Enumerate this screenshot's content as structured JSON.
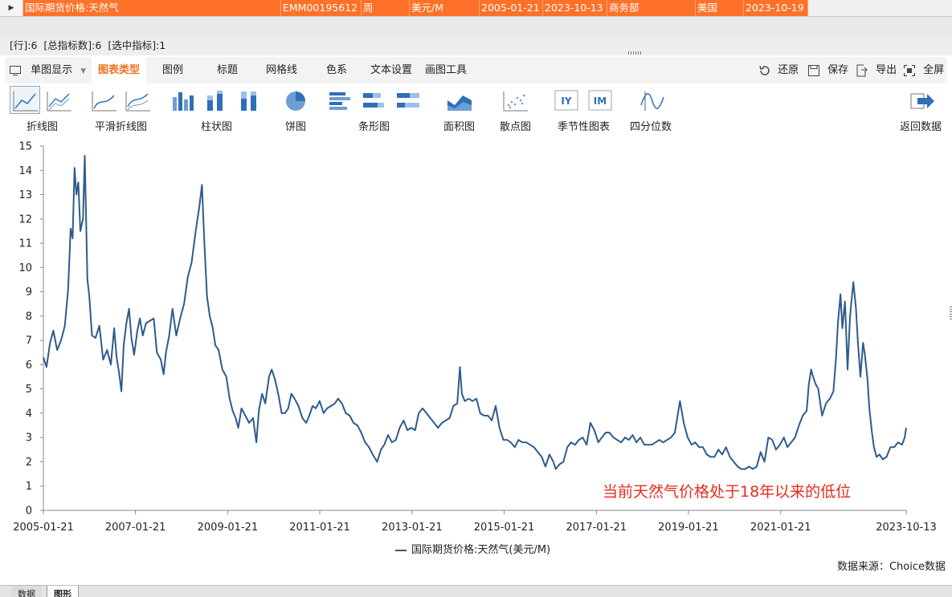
{
  "grid_row": {
    "indicator": "▶",
    "cells": [
      {
        "key": "name",
        "text": "国际期货价格:天然气"
      },
      {
        "key": "code",
        "text": "EMM00195612"
      },
      {
        "key": "freq",
        "text": "周"
      },
      {
        "key": "unit",
        "text": "美元/M"
      },
      {
        "key": "start",
        "text": "2005-01-21"
      },
      {
        "key": "end",
        "text": "2023-10-13"
      },
      {
        "key": "source",
        "text": "商务部"
      },
      {
        "key": "region",
        "text": "美国"
      },
      {
        "key": "updated",
        "text": "2023-10-19"
      }
    ]
  },
  "status": {
    "rows": "[行]:6",
    "total": "[总指标数]:6",
    "selected": "[选中指标]:1"
  },
  "tabs": {
    "single_view": "单图显示",
    "items": [
      "图表类型",
      "图例",
      "标题",
      "网格线",
      "色系",
      "文本设置",
      "画图工具"
    ],
    "actions": {
      "restore": "还原",
      "save": "保存",
      "export": "导出",
      "fullscreen": "全屏"
    }
  },
  "ribbon": {
    "labels": {
      "line": "折线图",
      "smooth": "平滑折线图",
      "bar": "柱状图",
      "pie": "饼图",
      "hbar": "条形图",
      "area": "面积图",
      "scatter": "散点图",
      "seasonal": "季节性图表",
      "quantile": "四分位数",
      "back": "返回数据"
    },
    "seasonal_icons": [
      "IY",
      "IM"
    ]
  },
  "chart_data": {
    "type": "line",
    "title": "",
    "xlabel": "",
    "ylabel": "",
    "ylim": [
      0,
      15
    ],
    "yticks": [
      "0",
      "1",
      "2",
      "3",
      "4",
      "5",
      "6",
      "7",
      "8",
      "9",
      "10",
      "11",
      "12",
      "13",
      "14",
      "15"
    ],
    "xtick_labels": [
      "2005-01-21",
      "2007-01-21",
      "2009-01-21",
      "2011-01-21",
      "2013-01-21",
      "2015-01-21",
      "2017-01-21",
      "2019-01-21",
      "2021-01-21",
      "2023-10-13"
    ],
    "xtick_dates": [
      "2005-01-21",
      "2007-01-21",
      "2009-01-21",
      "2011-01-21",
      "2013-01-21",
      "2015-01-21",
      "2017-01-21",
      "2019-01-21",
      "2021-01-21",
      "2023-10-13"
    ],
    "series": [
      {
        "name": "国际期货价格:天然气(美元/M)",
        "color": "#2e5b8c",
        "points": [
          [
            "2005-01-21",
            6.3
          ],
          [
            "2005-02-15",
            5.9
          ],
          [
            "2005-03-15",
            6.9
          ],
          [
            "2005-04-10",
            7.4
          ],
          [
            "2005-05-10",
            6.6
          ],
          [
            "2005-06-10",
            7.0
          ],
          [
            "2005-07-10",
            7.6
          ],
          [
            "2005-08-05",
            9.1
          ],
          [
            "2005-08-25",
            11.6
          ],
          [
            "2005-09-10",
            11.2
          ],
          [
            "2005-09-25",
            14.1
          ],
          [
            "2005-10-10",
            13.0
          ],
          [
            "2005-10-25",
            13.5
          ],
          [
            "2005-11-10",
            11.5
          ],
          [
            "2005-12-01",
            12.0
          ],
          [
            "2005-12-15",
            14.6
          ],
          [
            "2006-01-05",
            9.5
          ],
          [
            "2006-01-20",
            8.8
          ],
          [
            "2006-02-10",
            7.2
          ],
          [
            "2006-03-10",
            7.1
          ],
          [
            "2006-04-10",
            7.6
          ],
          [
            "2006-05-10",
            6.2
          ],
          [
            "2006-06-10",
            6.6
          ],
          [
            "2006-07-10",
            6.0
          ],
          [
            "2006-08-05",
            7.5
          ],
          [
            "2006-08-25",
            6.3
          ],
          [
            "2006-09-15",
            5.6
          ],
          [
            "2006-10-01",
            4.9
          ],
          [
            "2006-10-20",
            6.8
          ],
          [
            "2006-11-10",
            7.7
          ],
          [
            "2006-12-01",
            8.3
          ],
          [
            "2006-12-20",
            7.1
          ],
          [
            "2007-01-10",
            6.4
          ],
          [
            "2007-02-05",
            7.4
          ],
          [
            "2007-02-25",
            7.9
          ],
          [
            "2007-03-20",
            7.2
          ],
          [
            "2007-04-15",
            7.7
          ],
          [
            "2007-05-15",
            7.8
          ],
          [
            "2007-06-15",
            7.9
          ],
          [
            "2007-07-10",
            6.5
          ],
          [
            "2007-08-10",
            6.2
          ],
          [
            "2007-09-01",
            5.6
          ],
          [
            "2007-09-20",
            6.5
          ],
          [
            "2007-10-15",
            7.2
          ],
          [
            "2007-11-10",
            8.3
          ],
          [
            "2007-12-10",
            7.2
          ],
          [
            "2008-01-10",
            7.9
          ],
          [
            "2008-02-10",
            8.5
          ],
          [
            "2008-03-10",
            9.6
          ],
          [
            "2008-04-10",
            10.2
          ],
          [
            "2008-05-10",
            11.4
          ],
          [
            "2008-06-10",
            12.5
          ],
          [
            "2008-07-01",
            13.4
          ],
          [
            "2008-07-20",
            11.0
          ],
          [
            "2008-08-10",
            8.8
          ],
          [
            "2008-09-01",
            8.0
          ],
          [
            "2008-09-25",
            7.5
          ],
          [
            "2008-10-15",
            6.8
          ],
          [
            "2008-11-10",
            6.6
          ],
          [
            "2008-12-10",
            5.8
          ],
          [
            "2009-01-10",
            5.5
          ],
          [
            "2009-02-05",
            4.6
          ],
          [
            "2009-03-01",
            4.1
          ],
          [
            "2009-03-25",
            3.8
          ],
          [
            "2009-04-15",
            3.4
          ],
          [
            "2009-05-10",
            4.2
          ],
          [
            "2009-06-10",
            3.9
          ],
          [
            "2009-07-10",
            3.6
          ],
          [
            "2009-08-10",
            3.8
          ],
          [
            "2009-09-05",
            2.8
          ],
          [
            "2009-09-25",
            4.1
          ],
          [
            "2009-10-20",
            4.8
          ],
          [
            "2009-11-15",
            4.4
          ],
          [
            "2009-12-15",
            5.5
          ],
          [
            "2010-01-05",
            5.8
          ],
          [
            "2010-01-30",
            5.4
          ],
          [
            "2010-02-25",
            4.8
          ],
          [
            "2010-03-25",
            4.0
          ],
          [
            "2010-04-20",
            4.0
          ],
          [
            "2010-05-15",
            4.2
          ],
          [
            "2010-06-10",
            4.8
          ],
          [
            "2010-07-05",
            4.6
          ],
          [
            "2010-08-05",
            4.3
          ],
          [
            "2010-09-05",
            3.8
          ],
          [
            "2010-10-05",
            3.6
          ],
          [
            "2010-10-30",
            3.9
          ],
          [
            "2010-11-25",
            4.3
          ],
          [
            "2010-12-20",
            4.2
          ],
          [
            "2011-01-20",
            4.5
          ],
          [
            "2011-02-20",
            4.0
          ],
          [
            "2011-03-20",
            4.2
          ],
          [
            "2011-04-20",
            4.3
          ],
          [
            "2011-05-20",
            4.4
          ],
          [
            "2011-06-15",
            4.6
          ],
          [
            "2011-07-15",
            4.4
          ],
          [
            "2011-08-15",
            4.0
          ],
          [
            "2011-09-15",
            3.9
          ],
          [
            "2011-10-15",
            3.6
          ],
          [
            "2011-11-15",
            3.5
          ],
          [
            "2011-12-15",
            3.2
          ],
          [
            "2012-01-15",
            2.8
          ],
          [
            "2012-02-15",
            2.6
          ],
          [
            "2012-03-15",
            2.3
          ],
          [
            "2012-04-20",
            2.0
          ],
          [
            "2012-05-20",
            2.5
          ],
          [
            "2012-06-15",
            2.7
          ],
          [
            "2012-07-15",
            3.1
          ],
          [
            "2012-08-15",
            2.8
          ],
          [
            "2012-09-15",
            2.9
          ],
          [
            "2012-10-15",
            3.4
          ],
          [
            "2012-11-15",
            3.7
          ],
          [
            "2012-12-15",
            3.3
          ],
          [
            "2013-01-15",
            3.4
          ],
          [
            "2013-02-15",
            3.3
          ],
          [
            "2013-03-15",
            4.0
          ],
          [
            "2013-04-15",
            4.2
          ],
          [
            "2013-05-15",
            4.0
          ],
          [
            "2013-06-15",
            3.8
          ],
          [
            "2013-07-15",
            3.6
          ],
          [
            "2013-08-15",
            3.4
          ],
          [
            "2013-09-15",
            3.6
          ],
          [
            "2013-10-15",
            3.7
          ],
          [
            "2013-11-15",
            3.8
          ],
          [
            "2013-12-15",
            4.3
          ],
          [
            "2014-01-15",
            4.4
          ],
          [
            "2014-02-05",
            5.9
          ],
          [
            "2014-02-20",
            4.8
          ],
          [
            "2014-03-15",
            4.5
          ],
          [
            "2014-04-15",
            4.6
          ],
          [
            "2014-05-15",
            4.5
          ],
          [
            "2014-06-15",
            4.6
          ],
          [
            "2014-07-15",
            4.0
          ],
          [
            "2014-08-15",
            3.9
          ],
          [
            "2014-09-15",
            3.9
          ],
          [
            "2014-10-15",
            3.7
          ],
          [
            "2014-11-15",
            4.3
          ],
          [
            "2014-12-15",
            3.4
          ],
          [
            "2015-01-15",
            2.9
          ],
          [
            "2015-02-15",
            2.9
          ],
          [
            "2015-03-15",
            2.8
          ],
          [
            "2015-04-15",
            2.6
          ],
          [
            "2015-05-15",
            2.9
          ],
          [
            "2015-06-15",
            2.8
          ],
          [
            "2015-07-15",
            2.8
          ],
          [
            "2015-08-15",
            2.7
          ],
          [
            "2015-09-15",
            2.6
          ],
          [
            "2015-10-15",
            2.4
          ],
          [
            "2015-11-15",
            2.2
          ],
          [
            "2015-12-15",
            1.8
          ],
          [
            "2016-01-15",
            2.3
          ],
          [
            "2016-02-15",
            2.0
          ],
          [
            "2016-03-05",
            1.7
          ],
          [
            "2016-04-05",
            1.9
          ],
          [
            "2016-05-05",
            2.0
          ],
          [
            "2016-06-05",
            2.6
          ],
          [
            "2016-07-05",
            2.8
          ],
          [
            "2016-08-05",
            2.7
          ],
          [
            "2016-09-05",
            2.9
          ],
          [
            "2016-10-05",
            3.0
          ],
          [
            "2016-11-05",
            2.7
          ],
          [
            "2016-12-05",
            3.6
          ],
          [
            "2017-01-05",
            3.3
          ],
          [
            "2017-02-05",
            2.8
          ],
          [
            "2017-03-05",
            3.0
          ],
          [
            "2017-04-05",
            3.2
          ],
          [
            "2017-05-05",
            3.2
          ],
          [
            "2017-06-05",
            3.0
          ],
          [
            "2017-07-05",
            2.9
          ],
          [
            "2017-08-05",
            2.8
          ],
          [
            "2017-09-05",
            3.0
          ],
          [
            "2017-10-05",
            2.9
          ],
          [
            "2017-11-05",
            3.1
          ],
          [
            "2017-12-05",
            2.8
          ],
          [
            "2018-01-05",
            3.0
          ],
          [
            "2018-02-05",
            2.7
          ],
          [
            "2018-03-05",
            2.7
          ],
          [
            "2018-04-05",
            2.7
          ],
          [
            "2018-05-05",
            2.8
          ],
          [
            "2018-06-05",
            2.9
          ],
          [
            "2018-07-05",
            2.8
          ],
          [
            "2018-08-05",
            2.9
          ],
          [
            "2018-09-05",
            3.0
          ],
          [
            "2018-10-05",
            3.2
          ],
          [
            "2018-11-15",
            4.5
          ],
          [
            "2018-12-15",
            3.6
          ],
          [
            "2019-01-15",
            3.0
          ],
          [
            "2019-02-15",
            2.7
          ],
          [
            "2019-03-15",
            2.8
          ],
          [
            "2019-04-15",
            2.6
          ],
          [
            "2019-05-15",
            2.6
          ],
          [
            "2019-06-15",
            2.3
          ],
          [
            "2019-07-15",
            2.2
          ],
          [
            "2019-08-15",
            2.2
          ],
          [
            "2019-09-15",
            2.5
          ],
          [
            "2019-10-15",
            2.3
          ],
          [
            "2019-11-15",
            2.6
          ],
          [
            "2019-12-15",
            2.2
          ],
          [
            "2020-01-15",
            2.0
          ],
          [
            "2020-02-15",
            1.8
          ],
          [
            "2020-03-15",
            1.7
          ],
          [
            "2020-04-15",
            1.7
          ],
          [
            "2020-05-15",
            1.8
          ],
          [
            "2020-06-15",
            1.7
          ],
          [
            "2020-07-15",
            1.8
          ],
          [
            "2020-08-15",
            2.4
          ],
          [
            "2020-09-15",
            2.0
          ],
          [
            "2020-10-15",
            3.0
          ],
          [
            "2020-11-15",
            2.9
          ],
          [
            "2020-12-15",
            2.5
          ],
          [
            "2021-01-15",
            2.7
          ],
          [
            "2021-02-15",
            3.0
          ],
          [
            "2021-03-15",
            2.6
          ],
          [
            "2021-04-15",
            2.8
          ],
          [
            "2021-05-15",
            3.0
          ],
          [
            "2021-06-15",
            3.5
          ],
          [
            "2021-07-15",
            3.9
          ],
          [
            "2021-08-15",
            4.1
          ],
          [
            "2021-09-01",
            5.2
          ],
          [
            "2021-09-20",
            5.8
          ],
          [
            "2021-10-05",
            5.5
          ],
          [
            "2021-10-25",
            5.2
          ],
          [
            "2021-11-15",
            5.0
          ],
          [
            "2021-12-15",
            3.9
          ],
          [
            "2022-01-15",
            4.4
          ],
          [
            "2022-02-15",
            4.6
          ],
          [
            "2022-03-15",
            4.9
          ],
          [
            "2022-04-05",
            6.3
          ],
          [
            "2022-04-20",
            7.7
          ],
          [
            "2022-05-10",
            8.9
          ],
          [
            "2022-05-25",
            7.5
          ],
          [
            "2022-06-15",
            8.6
          ],
          [
            "2022-07-05",
            5.8
          ],
          [
            "2022-07-25",
            8.0
          ],
          [
            "2022-08-20",
            9.4
          ],
          [
            "2022-09-10",
            8.3
          ],
          [
            "2022-09-25",
            6.9
          ],
          [
            "2022-10-15",
            5.5
          ],
          [
            "2022-11-05",
            6.9
          ],
          [
            "2022-11-20",
            6.4
          ],
          [
            "2022-12-10",
            5.4
          ],
          [
            "2022-12-25",
            4.2
          ],
          [
            "2023-01-15",
            3.2
          ],
          [
            "2023-01-30",
            2.6
          ],
          [
            "2023-02-20",
            2.2
          ],
          [
            "2023-03-15",
            2.3
          ],
          [
            "2023-04-10",
            2.1
          ],
          [
            "2023-05-10",
            2.2
          ],
          [
            "2023-06-10",
            2.6
          ],
          [
            "2023-07-10",
            2.6
          ],
          [
            "2023-08-10",
            2.8
          ],
          [
            "2023-09-10",
            2.7
          ],
          [
            "2023-10-01",
            3.0
          ],
          [
            "2023-10-13",
            3.4
          ]
        ]
      }
    ],
    "annotation": "当前天然气价格处于18年以来的低位",
    "legend": "国际期货价格:天然气(美元/M)",
    "source_note": "数据来源：Choice数据"
  }
}
